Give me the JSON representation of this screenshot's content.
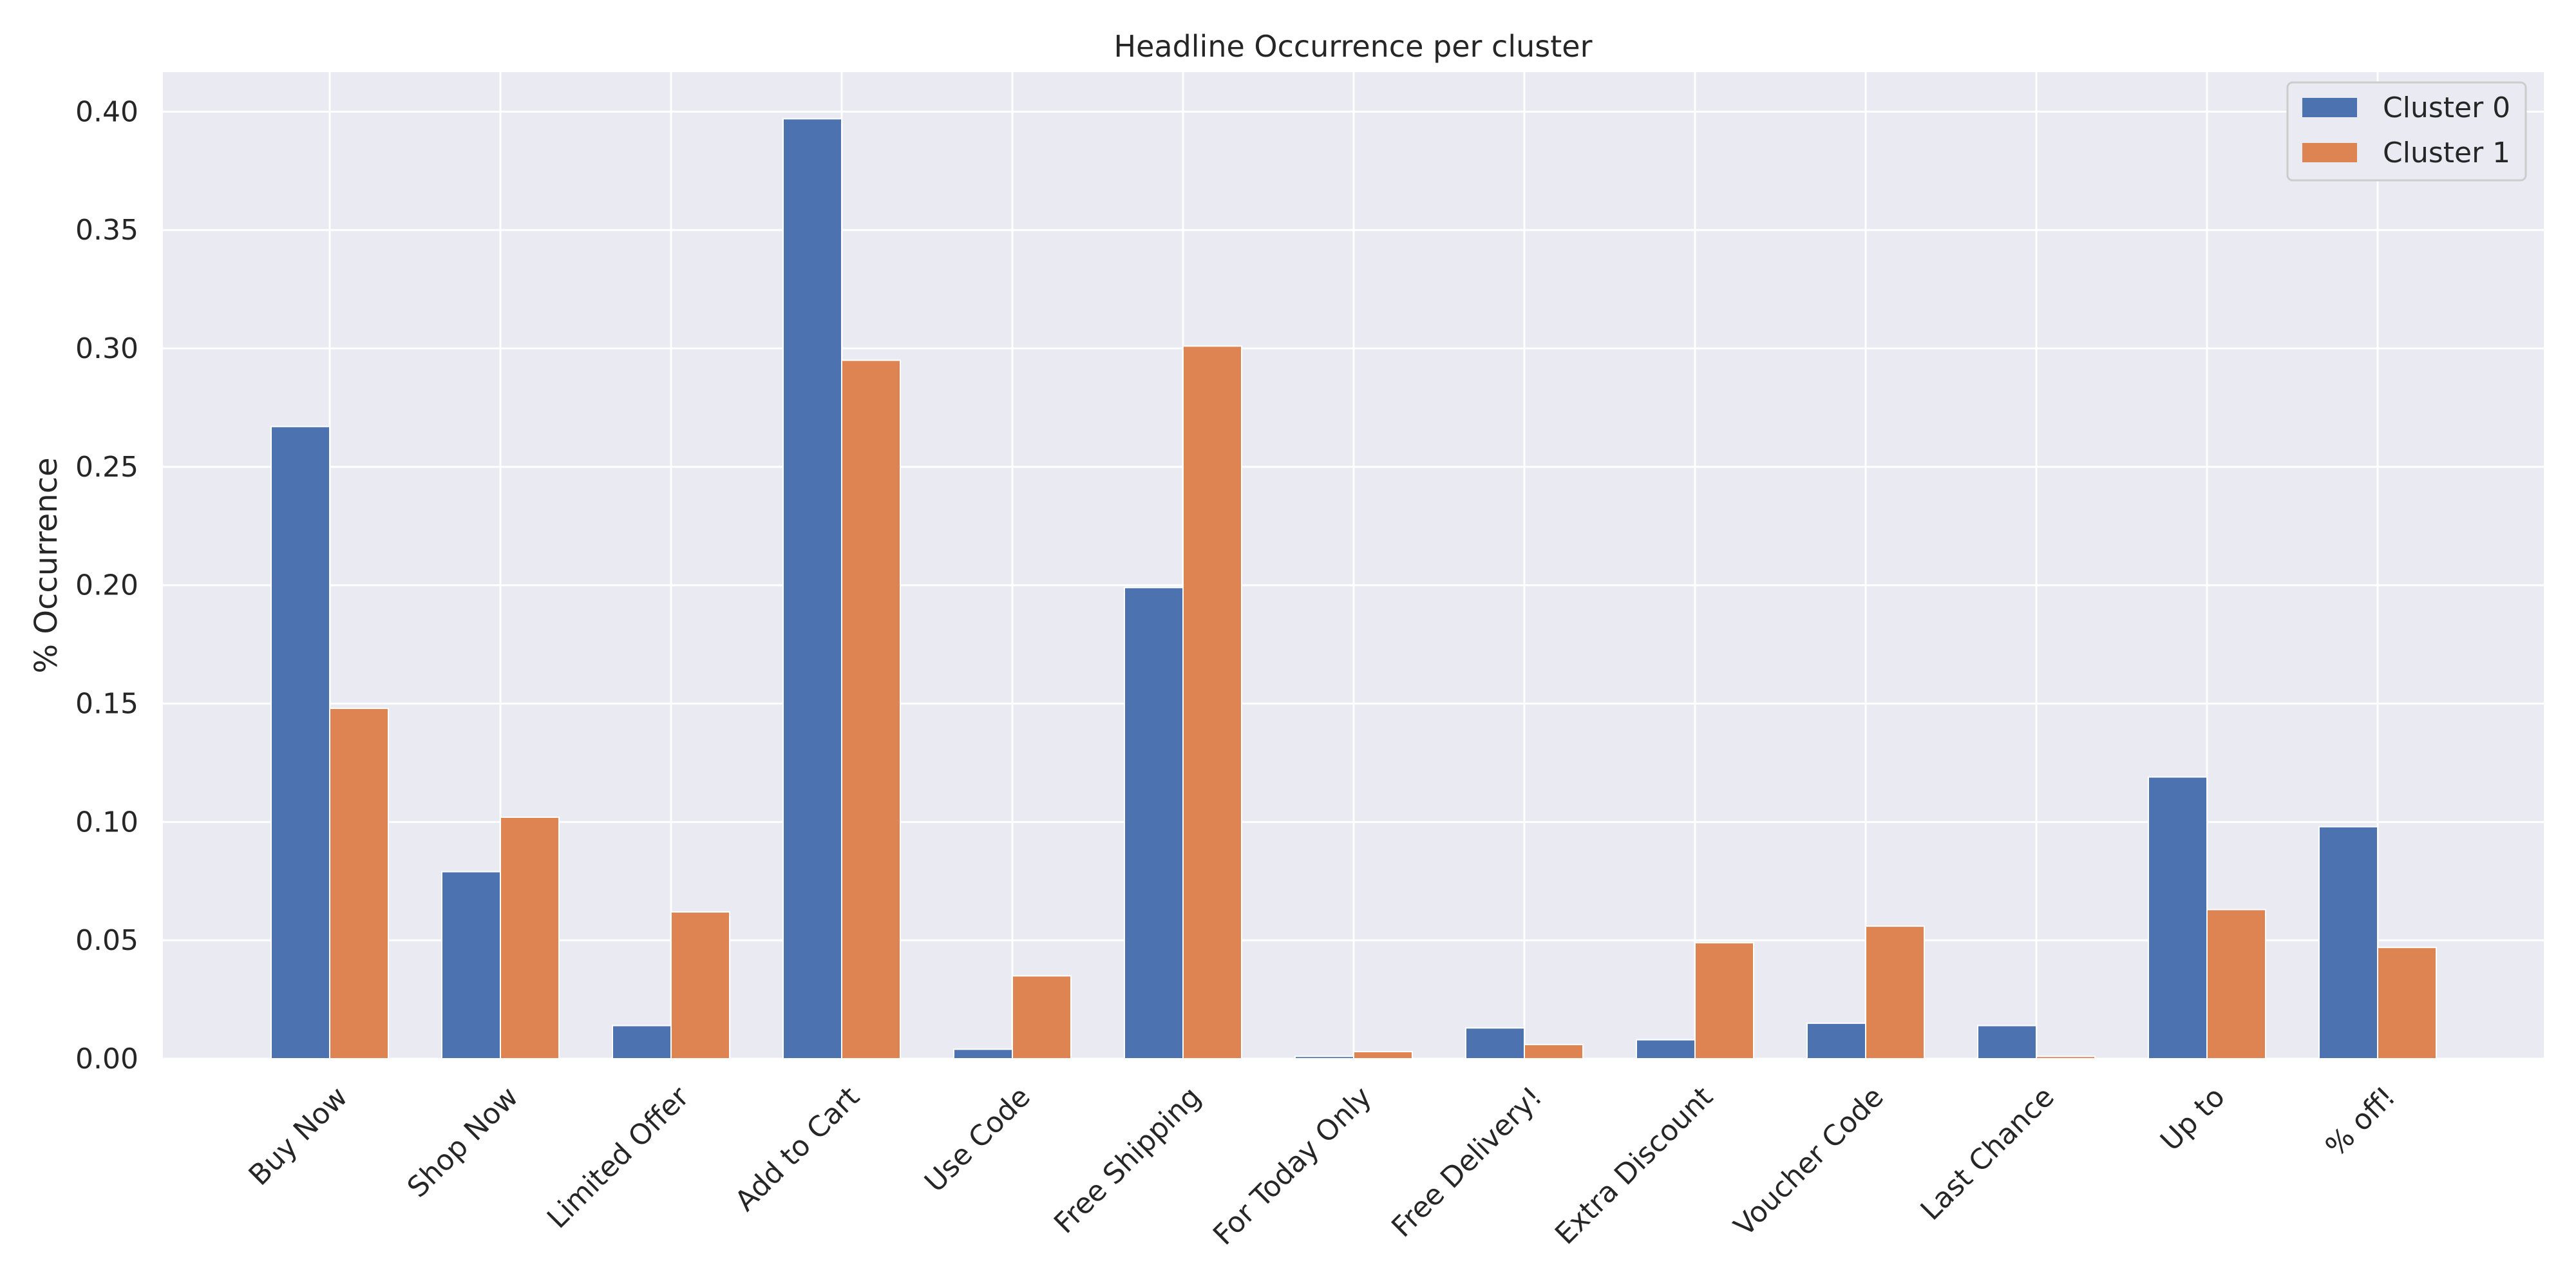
{
  "chart_data": {
    "type": "bar",
    "title": "Headline Occurrence per cluster",
    "xlabel": "",
    "ylabel": "% Occurrence",
    "categories": [
      "Buy Now",
      "Shop Now",
      "Limited Offer",
      "Add to Cart",
      "Use Code",
      "Free Shipping",
      "For Today Only",
      "Free Delivery!",
      "Extra Discount",
      "Voucher Code",
      "Last Chance",
      "Up to",
      "% off!"
    ],
    "series": [
      {
        "name": "Cluster 0",
        "color": "#4c72b0",
        "values": [
          0.267,
          0.079,
          0.014,
          0.397,
          0.004,
          0.199,
          0.001,
          0.013,
          0.008,
          0.015,
          0.014,
          0.119,
          0.098
        ]
      },
      {
        "name": "Cluster 1",
        "color": "#dd8452",
        "values": [
          0.148,
          0.102,
          0.062,
          0.295,
          0.035,
          0.301,
          0.003,
          0.006,
          0.049,
          0.056,
          0.001,
          0.063,
          0.047
        ]
      }
    ],
    "ylim": [
      0,
      0.4167
    ],
    "yticks": [
      "0.00",
      "0.05",
      "0.10",
      "0.15",
      "0.20",
      "0.25",
      "0.30",
      "0.35",
      "0.40"
    ],
    "grid": true,
    "legend_position": "top-right",
    "background_color": "#eaeaf2"
  }
}
